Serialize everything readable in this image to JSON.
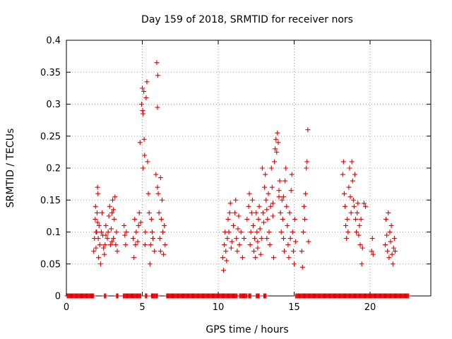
{
  "chart_data": {
    "type": "scatter",
    "title": "Day 159 of 2018, SRMTID for receiver nors",
    "xlabel": "GPS time / hours",
    "ylabel": "SRMTID / TECUs",
    "xlim": [
      0,
      24
    ],
    "ylim": [
      0,
      0.4
    ],
    "x_ticks": [
      0,
      5,
      10,
      15,
      20
    ],
    "y_ticks": [
      0,
      0.05,
      0.1,
      0.15,
      0.2,
      0.25,
      0.3,
      0.35,
      0.4
    ],
    "x_tick_labels": [
      "0",
      "5",
      "10",
      "15",
      "20"
    ],
    "y_tick_labels": [
      "0",
      "0.05",
      "0.1",
      "0.15",
      "0.2",
      "0.25",
      "0.3",
      "0.35",
      "0.4"
    ],
    "grid": true,
    "marker": "+",
    "color": "#e00000",
    "series": [
      {
        "name": "SRMTID",
        "points": [
          [
            1.8,
            0.07
          ],
          [
            1.85,
            0.09
          ],
          [
            1.9,
            0.12
          ],
          [
            1.92,
            0.14
          ],
          [
            1.95,
            0.075
          ],
          [
            2.0,
            0.1
          ],
          [
            2.02,
            0.13
          ],
          [
            2.05,
            0.17
          ],
          [
            2.08,
            0.16
          ],
          [
            2.1,
            0.09
          ],
          [
            2.12,
            0.06
          ],
          [
            2.15,
            0.11
          ],
          [
            2.2,
            0.08
          ],
          [
            2.25,
            0.05
          ],
          [
            2.3,
            0.1
          ],
          [
            2.35,
            0.13
          ],
          [
            2.4,
            0.095
          ],
          [
            2.45,
            0.075
          ],
          [
            2.5,
            0.065
          ],
          [
            2.55,
            0.08
          ],
          [
            2.6,
            0.11
          ],
          [
            2.7,
            0.09
          ],
          [
            2.75,
            0.1
          ],
          [
            2.8,
            0.125
          ],
          [
            2.85,
            0.14
          ],
          [
            2.9,
            0.08
          ],
          [
            2.95,
            0.105
          ],
          [
            3.0,
            0.13
          ],
          [
            3.05,
            0.15
          ],
          [
            3.1,
            0.09
          ],
          [
            3.15,
            0.12
          ],
          [
            3.2,
            0.155
          ],
          [
            3.25,
            0.08
          ],
          [
            3.3,
            0.1
          ],
          [
            3.35,
            0.07
          ],
          [
            1.95,
            0.1
          ],
          [
            2.05,
            0.115
          ],
          [
            2.6,
            0.095
          ],
          [
            3.0,
            0.085
          ],
          [
            3.1,
            0.135
          ],
          [
            3.8,
            0.11
          ],
          [
            3.85,
            0.095
          ],
          [
            3.9,
            0.08
          ],
          [
            3.95,
            0.1
          ],
          [
            4.4,
            0.09
          ],
          [
            4.45,
            0.06
          ],
          [
            4.5,
            0.12
          ],
          [
            4.55,
            0.08
          ],
          [
            4.6,
            0.1
          ],
          [
            4.7,
            0.085
          ],
          [
            4.75,
            0.11
          ],
          [
            4.8,
            0.13
          ],
          [
            4.85,
            0.24
          ],
          [
            4.9,
            0.115
          ],
          [
            4.95,
            0.3
          ],
          [
            5.0,
            0.325
          ],
          [
            5.02,
            0.29
          ],
          [
            5.05,
            0.285
          ],
          [
            5.1,
            0.32
          ],
          [
            5.12,
            0.245
          ],
          [
            5.15,
            0.22
          ],
          [
            5.18,
            0.08
          ],
          [
            5.2,
            0.1
          ],
          [
            5.25,
            0.31
          ],
          [
            5.3,
            0.335
          ],
          [
            5.35,
            0.21
          ],
          [
            5.4,
            0.16
          ],
          [
            5.45,
            0.13
          ],
          [
            5.5,
            0.05
          ],
          [
            5.55,
            0.08
          ],
          [
            5.6,
            0.12
          ],
          [
            5.65,
            0.1
          ],
          [
            5.7,
            0.09
          ],
          [
            5.8,
            0.07
          ],
          [
            5.9,
            0.19
          ],
          [
            5.95,
            0.365
          ],
          [
            6.0,
            0.295
          ],
          [
            6.02,
            0.345
          ],
          [
            6.05,
            0.16
          ],
          [
            6.1,
            0.13
          ],
          [
            6.15,
            0.09
          ],
          [
            6.2,
            0.07
          ],
          [
            6.25,
            0.12
          ],
          [
            6.3,
            0.15
          ],
          [
            6.35,
            0.1
          ],
          [
            6.4,
            0.065
          ],
          [
            6.45,
            0.11
          ],
          [
            6.5,
            0.08
          ],
          [
            5.05,
            0.2
          ],
          [
            6.0,
            0.17
          ],
          [
            6.2,
            0.185
          ],
          [
            10.3,
            0.06
          ],
          [
            10.35,
            0.04
          ],
          [
            10.4,
            0.08
          ],
          [
            10.45,
            0.1
          ],
          [
            10.5,
            0.07
          ],
          [
            10.55,
            0.055
          ],
          [
            10.6,
            0.09
          ],
          [
            10.65,
            0.12
          ],
          [
            10.7,
            0.1
          ],
          [
            10.75,
            0.13
          ],
          [
            10.8,
            0.145
          ],
          [
            10.85,
            0.075
          ],
          [
            10.9,
            0.085
          ],
          [
            11.0,
            0.11
          ],
          [
            11.1,
            0.13
          ],
          [
            11.15,
            0.15
          ],
          [
            11.2,
            0.09
          ],
          [
            11.25,
            0.07
          ],
          [
            11.3,
            0.105
          ],
          [
            11.35,
            0.125
          ],
          [
            11.4,
            0.08
          ],
          [
            11.5,
            0.1
          ],
          [
            11.6,
            0.06
          ],
          [
            11.7,
            0.09
          ],
          [
            11.9,
            0.12
          ],
          [
            12.0,
            0.14
          ],
          [
            12.05,
            0.16
          ],
          [
            12.1,
            0.08
          ],
          [
            12.15,
            0.1
          ],
          [
            12.2,
            0.13
          ],
          [
            12.25,
            0.15
          ],
          [
            12.3,
            0.11
          ],
          [
            12.35,
            0.07
          ],
          [
            12.4,
            0.09
          ],
          [
            12.45,
            0.06
          ],
          [
            12.5,
            0.13
          ],
          [
            12.55,
            0.1
          ],
          [
            12.6,
            0.085
          ],
          [
            12.65,
            0.12
          ],
          [
            12.7,
            0.14
          ],
          [
            12.75,
            0.105
          ],
          [
            12.8,
            0.065
          ],
          [
            12.85,
            0.09
          ],
          [
            12.9,
            0.2
          ],
          [
            12.95,
            0.13
          ],
          [
            13.0,
            0.115
          ],
          [
            13.05,
            0.17
          ],
          [
            13.1,
            0.19
          ],
          [
            13.15,
            0.15
          ],
          [
            13.2,
            0.09
          ],
          [
            13.25,
            0.12
          ],
          [
            13.3,
            0.16
          ],
          [
            13.35,
            0.1
          ],
          [
            13.4,
            0.08
          ],
          [
            13.45,
            0.14
          ],
          [
            13.5,
            0.2
          ],
          [
            13.55,
            0.17
          ],
          [
            13.6,
            0.125
          ],
          [
            13.65,
            0.06
          ],
          [
            13.7,
            0.21
          ],
          [
            13.75,
            0.23
          ],
          [
            13.8,
            0.245
          ],
          [
            13.85,
            0.225
          ],
          [
            13.9,
            0.255
          ],
          [
            13.95,
            0.24
          ],
          [
            14.0,
            0.155
          ],
          [
            14.05,
            0.18
          ],
          [
            14.1,
            0.13
          ],
          [
            14.15,
            0.1
          ],
          [
            14.2,
            0.15
          ],
          [
            14.25,
            0.12
          ],
          [
            14.3,
            0.09
          ],
          [
            14.35,
            0.07
          ],
          [
            14.4,
            0.18
          ],
          [
            14.45,
            0.2
          ],
          [
            14.5,
            0.14
          ],
          [
            14.55,
            0.11
          ],
          [
            14.6,
            0.08
          ],
          [
            14.65,
            0.06
          ],
          [
            14.7,
            0.13
          ],
          [
            14.75,
            0.09
          ],
          [
            14.8,
            0.165
          ],
          [
            14.85,
            0.19
          ],
          [
            14.9,
            0.1
          ],
          [
            14.95,
            0.07
          ],
          [
            15.0,
            0.05
          ],
          [
            15.05,
            0.12
          ],
          [
            15.1,
            0.085
          ],
          [
            13.2,
            0.135
          ],
          [
            13.6,
            0.145
          ],
          [
            14.0,
            0.165
          ],
          [
            14.3,
            0.155
          ],
          [
            12.6,
            0.075
          ],
          [
            15.5,
            0.07
          ],
          [
            15.55,
            0.045
          ],
          [
            15.6,
            0.1
          ],
          [
            15.65,
            0.14
          ],
          [
            15.7,
            0.12
          ],
          [
            15.75,
            0.16
          ],
          [
            15.8,
            0.2
          ],
          [
            15.85,
            0.21
          ],
          [
            15.9,
            0.26
          ],
          [
            15.95,
            0.085
          ],
          [
            18.2,
            0.19
          ],
          [
            18.25,
            0.21
          ],
          [
            18.3,
            0.16
          ],
          [
            18.35,
            0.14
          ],
          [
            18.4,
            0.11
          ],
          [
            18.45,
            0.09
          ],
          [
            18.5,
            0.12
          ],
          [
            18.55,
            0.1
          ],
          [
            18.6,
            0.17
          ],
          [
            18.65,
            0.2
          ],
          [
            18.7,
            0.155
          ],
          [
            18.75,
            0.13
          ],
          [
            18.8,
            0.21
          ],
          [
            18.85,
            0.18
          ],
          [
            18.9,
            0.15
          ],
          [
            18.95,
            0.14
          ],
          [
            19.0,
            0.19
          ],
          [
            19.05,
            0.12
          ],
          [
            19.1,
            0.1
          ],
          [
            19.15,
            0.13
          ],
          [
            19.2,
            0.145
          ],
          [
            19.25,
            0.095
          ],
          [
            19.3,
            0.11
          ],
          [
            19.35,
            0.08
          ],
          [
            19.4,
            0.12
          ],
          [
            19.45,
            0.05
          ],
          [
            19.5,
            0.075
          ],
          [
            19.6,
            0.145
          ],
          [
            19.7,
            0.14
          ],
          [
            20.1,
            0.07
          ],
          [
            20.15,
            0.09
          ],
          [
            20.2,
            0.065
          ],
          [
            21.0,
            0.08
          ],
          [
            21.05,
            0.12
          ],
          [
            21.1,
            0.095
          ],
          [
            21.15,
            0.07
          ],
          [
            21.2,
            0.13
          ],
          [
            21.25,
            0.06
          ],
          [
            21.3,
            0.1
          ],
          [
            21.35,
            0.085
          ],
          [
            21.4,
            0.11
          ],
          [
            21.45,
            0.065
          ],
          [
            21.5,
            0.05
          ],
          [
            21.55,
            0.075
          ],
          [
            21.6,
            0.09
          ],
          [
            21.65,
            0.07
          ]
        ]
      }
    ],
    "zero_points_x": [
      0.05,
      0.1,
      0.15,
      0.2,
      0.25,
      0.3,
      0.35,
      0.4,
      0.45,
      0.5,
      0.55,
      0.6,
      0.65,
      0.7,
      0.75,
      0.8,
      0.85,
      0.9,
      0.95,
      1.0,
      1.05,
      1.1,
      1.15,
      1.2,
      1.25,
      1.3,
      1.35,
      1.4,
      1.45,
      1.5,
      1.55,
      1.6,
      1.65,
      1.7,
      1.75,
      1.8,
      2.5,
      2.55,
      2.6,
      3.3,
      3.35,
      3.4,
      3.75,
      3.8,
      3.85,
      3.9,
      3.95,
      4.0,
      4.05,
      4.1,
      4.15,
      4.2,
      4.25,
      4.3,
      4.35,
      4.4,
      4.45,
      4.5,
      4.55,
      4.6,
      4.65,
      4.7,
      4.75,
      4.8,
      4.85,
      4.9,
      5.2,
      5.25,
      5.3,
      5.6,
      5.65,
      5.7,
      5.75,
      5.8,
      5.85,
      5.9,
      5.95,
      6.0,
      6.6,
      6.65,
      6.7,
      6.75,
      6.8,
      6.85,
      6.9,
      6.95,
      7.0,
      7.05,
      7.1,
      7.15,
      7.2,
      7.25,
      7.3,
      7.35,
      7.4,
      7.45,
      7.5,
      7.55,
      7.6,
      7.65,
      7.7,
      7.75,
      7.8,
      7.85,
      7.9,
      7.95,
      8.0,
      8.05,
      8.1,
      8.15,
      8.2,
      8.25,
      8.3,
      8.35,
      8.4,
      8.45,
      8.5,
      8.55,
      8.6,
      8.65,
      8.7,
      8.75,
      8.8,
      8.85,
      8.9,
      8.95,
      9.0,
      9.05,
      9.1,
      9.15,
      9.2,
      9.25,
      9.3,
      9.35,
      9.4,
      9.45,
      9.5,
      9.55,
      9.6,
      9.65,
      9.7,
      9.75,
      9.8,
      9.85,
      9.9,
      9.95,
      10.0,
      10.05,
      10.1,
      10.15,
      10.2,
      10.25,
      10.3,
      10.35,
      10.4,
      10.45,
      10.5,
      10.55,
      10.6,
      10.65,
      10.7,
      10.75,
      10.8,
      10.85,
      10.9,
      10.95,
      11.0,
      11.05,
      11.1,
      11.15,
      11.2,
      11.25,
      11.4,
      11.45,
      11.5,
      11.55,
      11.6,
      11.65,
      11.7,
      11.75,
      11.8,
      11.85,
      11.9,
      12.0,
      12.05,
      12.1,
      12.15,
      12.5,
      12.55,
      12.6,
      12.65,
      12.7,
      13.0,
      13.05,
      13.1,
      13.15,
      15.1,
      15.15,
      15.2,
      15.25,
      15.3,
      15.35,
      15.4,
      15.45,
      15.5,
      15.55,
      15.6,
      15.65,
      15.7,
      15.75,
      15.8,
      15.85,
      15.9,
      15.95,
      16.0,
      16.05,
      16.1,
      16.15,
      16.2,
      16.25,
      16.3,
      16.35,
      16.4,
      16.45,
      16.5,
      16.55,
      16.6,
      16.65,
      16.7,
      16.75,
      16.8,
      16.85,
      16.9,
      16.95,
      17.0,
      17.05,
      17.1,
      17.15,
      17.2,
      17.25,
      17.3,
      17.35,
      17.4,
      17.45,
      17.5,
      17.55,
      17.6,
      17.65,
      17.7,
      17.75,
      17.8,
      17.85,
      17.9,
      17.95,
      18.0,
      18.05,
      18.1,
      18.15,
      18.2,
      18.25,
      18.3,
      18.35,
      18.4,
      18.45,
      18.5,
      18.55,
      18.6,
      18.65,
      18.7,
      18.75,
      18.8,
      18.85,
      18.9,
      18.95,
      19.0,
      19.05,
      19.1,
      19.15,
      19.2,
      19.25,
      19.3,
      19.35,
      19.4,
      19.45,
      19.5,
      19.55,
      19.6,
      19.65,
      19.7,
      19.75,
      19.8,
      19.85,
      19.9,
      19.95,
      20.0,
      20.05,
      20.1,
      20.15,
      20.2,
      20.25,
      20.3,
      20.35,
      20.4,
      20.45,
      20.5,
      20.55,
      20.6,
      20.65,
      20.7,
      20.75,
      20.8,
      20.85,
      20.9,
      20.95,
      21.0,
      21.05,
      21.1,
      21.15,
      21.2,
      21.25,
      21.3,
      21.35,
      21.4,
      21.45,
      21.5,
      21.55,
      21.6,
      21.65,
      21.7,
      21.75,
      21.8,
      21.85,
      21.9,
      21.95,
      22.0,
      22.05,
      22.1,
      22.15,
      22.2,
      22.25,
      22.3,
      22.35,
      22.4,
      22.45,
      22.5,
      22.55
    ]
  }
}
